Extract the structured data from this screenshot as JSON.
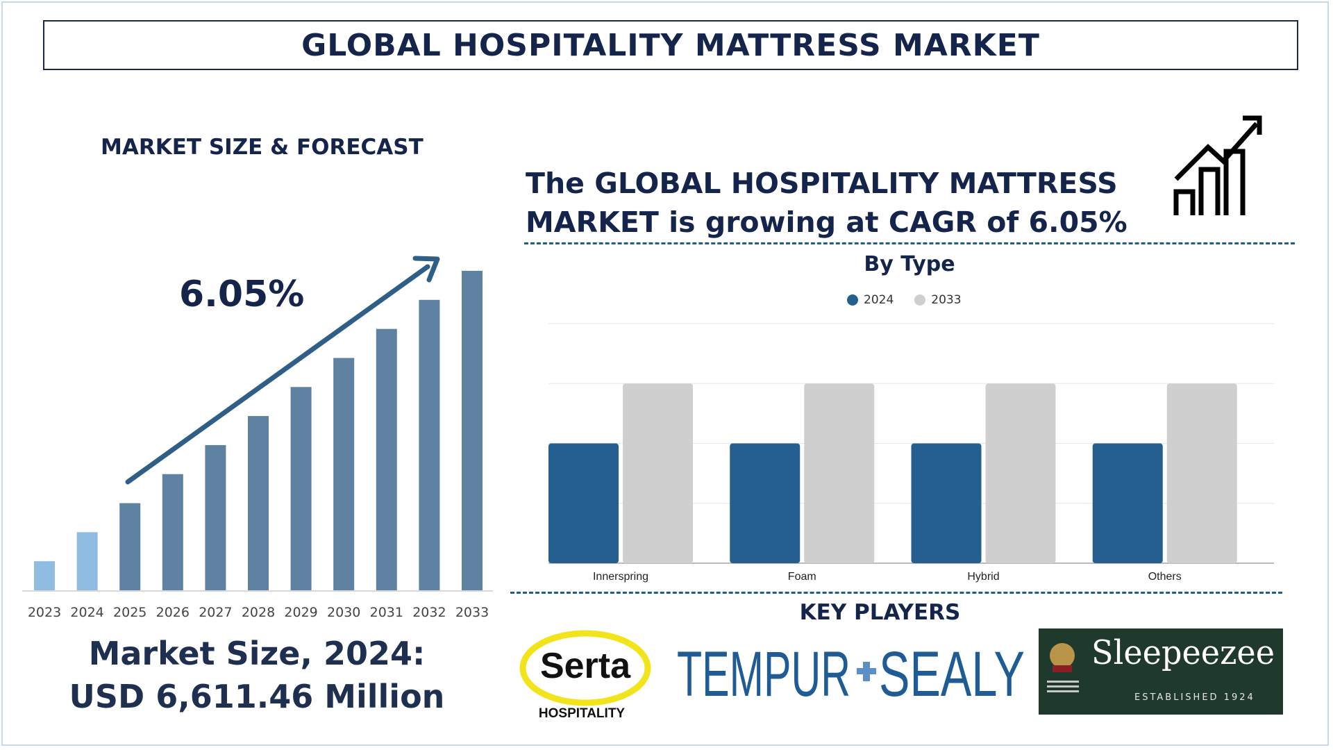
{
  "title": "GLOBAL HOSPITALITY MATTRESS MARKET",
  "left_panel": {
    "subhead": "MARKET SIZE & FORECAST",
    "cagr": "6.05%",
    "market_size_line1": "Market Size, 2024:",
    "market_size_line2": "USD 6,611.46 Million"
  },
  "headline": {
    "line1": "The GLOBAL HOSPITALITY MATTRESS",
    "line2": "MARKET is growing at CAGR of 6.05%"
  },
  "icons": {
    "growth": "growth-chart-icon"
  },
  "key_players": {
    "heading": "KEY PLAYERS",
    "serta_name": "Serta",
    "serta_sub": "HOSPITALITY",
    "tempur_left": "TEMPUR",
    "tempur_right": "SEALY",
    "sleepeezee_name": "Sleepeezee",
    "sleepeezee_est": "ESTABLISHED 1924"
  },
  "colors": {
    "navy": "#14244a",
    "bar_light": "#8fbce0",
    "bar_dark": "#5f82a2",
    "series_2024": "#245f8f",
    "series_2033": "#cfcfcf"
  },
  "chart_data": [
    {
      "type": "bar",
      "title": "",
      "categories": [
        "2023",
        "2024",
        "2025",
        "2026",
        "2027",
        "2028",
        "2029",
        "2030",
        "2031",
        "2032",
        "2033"
      ],
      "values": [
        1.0,
        2.0,
        3.0,
        4.0,
        5.0,
        6.0,
        7.0,
        8.0,
        9.0,
        10.0,
        11.0
      ],
      "highlighted": [
        "2023",
        "2024"
      ],
      "annotation": "6.05%",
      "grid": false
    },
    {
      "type": "bar",
      "title": "By Type",
      "categories": [
        "Innerspring",
        "Foam",
        "Hybrid",
        "Others"
      ],
      "series": [
        {
          "name": "2024",
          "values": [
            2,
            2,
            2,
            2
          ]
        },
        {
          "name": "2033",
          "values": [
            3,
            3,
            3,
            3
          ]
        }
      ],
      "ylim": [
        0,
        4
      ],
      "legend": "top-center",
      "grid": true
    }
  ]
}
